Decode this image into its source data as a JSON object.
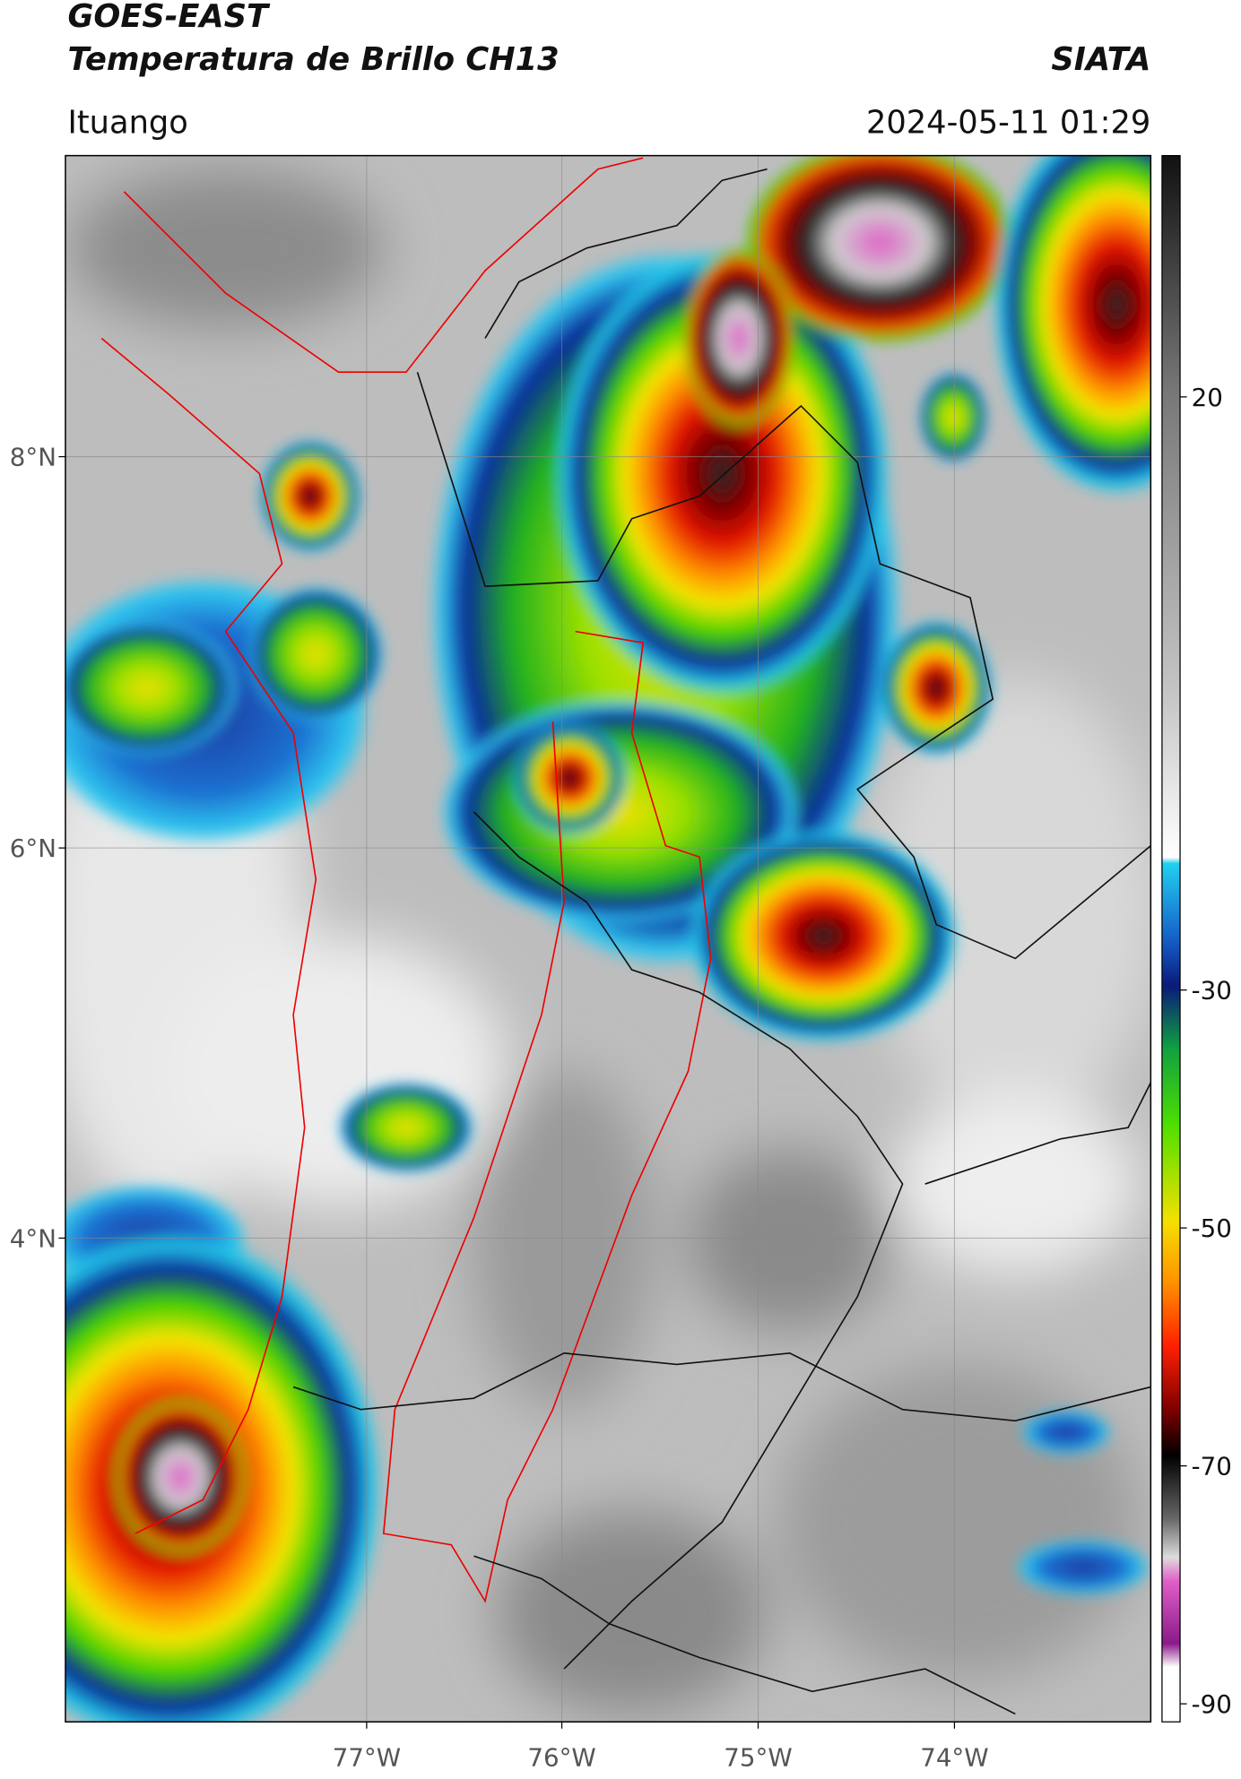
{
  "header": {
    "title": "GOES-EAST",
    "subtitle": "Temperatura de Brillo CH13",
    "source": "SIATA",
    "location": "Ituango",
    "timestamp": "2024-05-11 01:29"
  },
  "map": {
    "lat_labels": [
      "8°N",
      "6°N",
      "4°N"
    ],
    "lon_labels": [
      "77°W",
      "76°W",
      "75°W",
      "74°W"
    ]
  },
  "colorbar": {
    "ticks": [
      20,
      -30,
      -50,
      -70,
      -90
    ]
  }
}
